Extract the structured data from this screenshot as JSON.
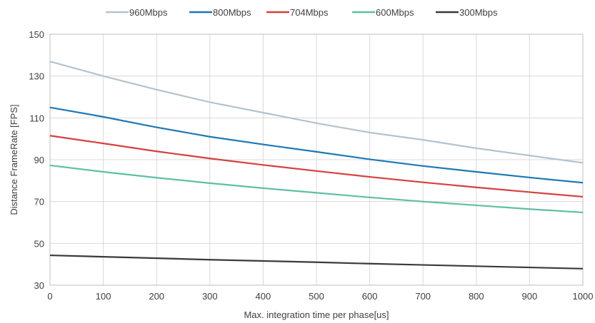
{
  "chart_data": {
    "type": "line",
    "title": "",
    "xlabel": "Max. integration time per phase[us]",
    "ylabel": "Distance FrameRate [FPS]",
    "xlim": [
      0,
      1000
    ],
    "ylim": [
      30,
      150
    ],
    "xticks": [
      "0",
      "100",
      "200",
      "300",
      "400",
      "500",
      "600",
      "700",
      "800",
      "900",
      "1000"
    ],
    "yticks": [
      "30",
      "50",
      "70",
      "90",
      "110",
      "130",
      "150"
    ],
    "grid": true,
    "legend_position": "top",
    "x": [
      0,
      100,
      200,
      300,
      400,
      500,
      600,
      700,
      800,
      900,
      1000
    ],
    "series": [
      {
        "name": "960Mbps",
        "color": "#b4c3ce",
        "values": [
          137,
          130,
          123.5,
          117.5,
          112.5,
          107.5,
          103,
          99.5,
          95.5,
          92,
          88.5
        ]
      },
      {
        "name": "800Mbps",
        "color": "#1f78b4",
        "values": [
          115,
          110.5,
          105.5,
          101,
          97.3,
          93.8,
          90.2,
          87,
          84.2,
          81.5,
          79
        ]
      },
      {
        "name": "704Mbps",
        "color": "#d64040",
        "values": [
          101.5,
          97.8,
          94,
          90.6,
          87.5,
          84.6,
          81.8,
          79.2,
          76.8,
          74.5,
          72.3
        ]
      },
      {
        "name": "600Mbps",
        "color": "#5fbfa3",
        "values": [
          87.3,
          84.2,
          81.4,
          78.8,
          76.4,
          74.2,
          72,
          70,
          68.2,
          66.4,
          64.8
        ]
      },
      {
        "name": "300Mbps",
        "color": "#3a3a3a",
        "values": [
          44.3,
          43.6,
          42.9,
          42.2,
          41.6,
          41,
          40.3,
          39.7,
          39.1,
          38.5,
          37.9
        ]
      }
    ]
  }
}
